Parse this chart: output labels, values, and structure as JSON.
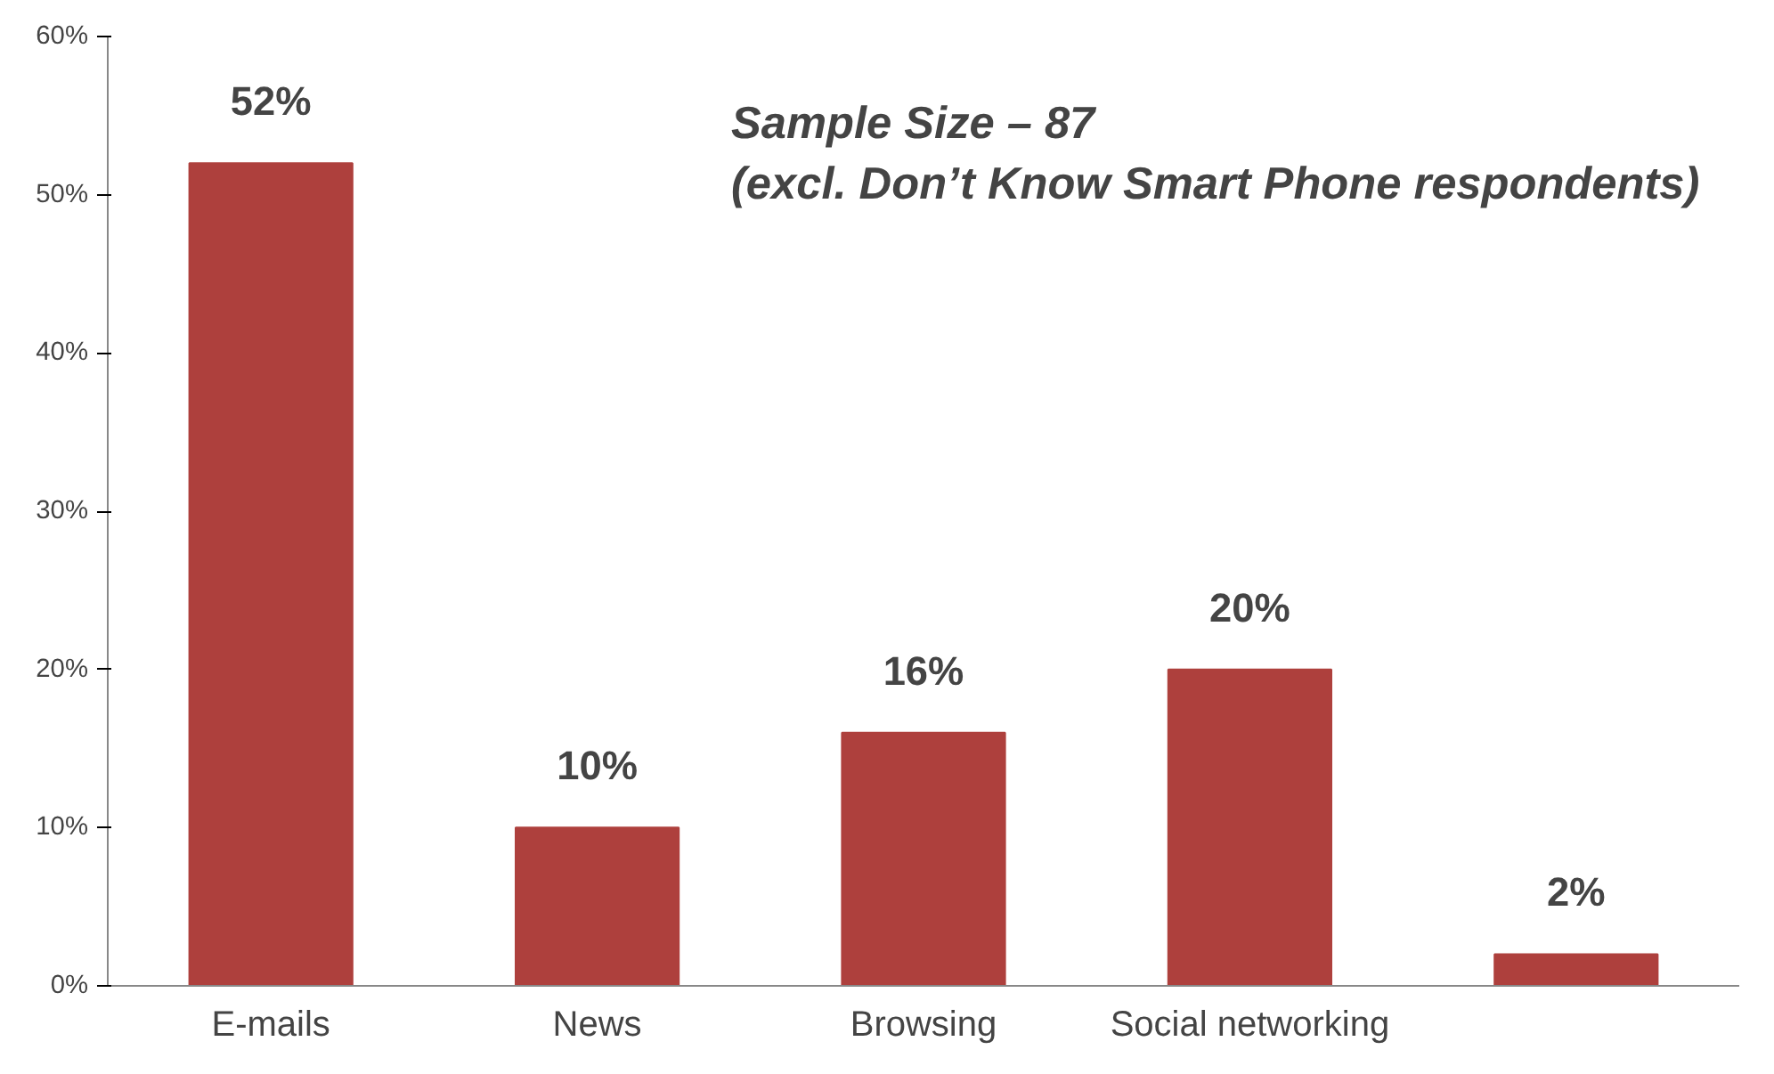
{
  "chart_data": {
    "type": "bar",
    "categories": [
      "E-mails",
      "News",
      "Browsing",
      "Social networking",
      null
    ],
    "values": [
      52,
      10,
      16,
      20,
      2
    ],
    "color": "#ae403d",
    "data_labels": true,
    "value_labels": [
      "52%",
      "10%",
      "16%",
      "20%",
      "2%"
    ],
    "ylim": [
      0,
      60
    ],
    "yticks": [
      {
        "value": 0,
        "label": "0%"
      },
      {
        "value": 10,
        "label": "10%"
      },
      {
        "value": 20,
        "label": "20%"
      },
      {
        "value": 30,
        "label": "30%"
      },
      {
        "value": 40,
        "label": "40%"
      },
      {
        "value": 50,
        "label": "50%"
      },
      {
        "value": 60,
        "label": "60%"
      }
    ],
    "grid": false,
    "annotations": [
      "Sample Size – 87",
      "(excl. Don’t Know Smart Phone respondents)"
    ]
  }
}
